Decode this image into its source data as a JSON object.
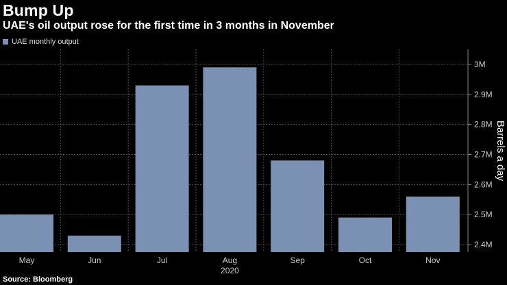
{
  "title": "Bump Up",
  "subtitle": "UAE's oil output rose for the first time in 3 months in November",
  "source": "Source: Bloomberg",
  "colors": {
    "background": "#000000",
    "bar": "#7b91b3",
    "grid": "#4a4a4a",
    "axis": "#888888"
  },
  "chart_data": {
    "type": "bar",
    "categories": [
      "May",
      "Jun",
      "Jul",
      "Aug",
      "Sep",
      "Oct",
      "Nov"
    ],
    "x_group_label": "2020",
    "series": [
      {
        "name": "UAE monthly output",
        "values": [
          2500000,
          2430000,
          2930000,
          2990000,
          2680000,
          2490000,
          2560000
        ]
      }
    ],
    "ylabel": "Barrels a day",
    "ylim": [
      2375000,
      3050000
    ],
    "yticks": [
      2400000,
      2500000,
      2600000,
      2700000,
      2800000,
      2900000,
      3000000
    ],
    "ytick_labels": [
      "2.4M",
      "2.5M",
      "2.6M",
      "2.7M",
      "2.8M",
      "2.9M",
      "3M"
    ],
    "y_axis_side": "right",
    "grid": true,
    "legend_position": "top-left"
  }
}
